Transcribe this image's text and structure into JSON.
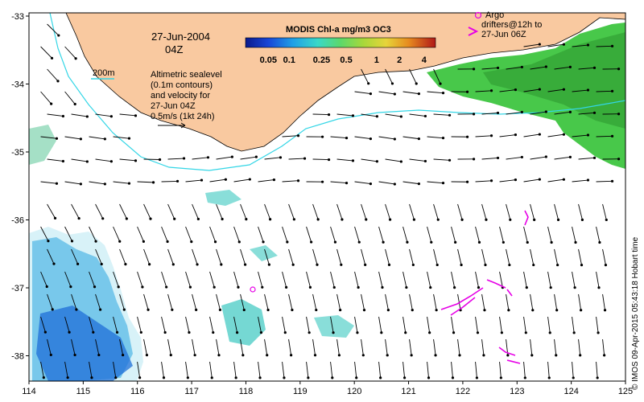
{
  "map": {
    "date": "27-Jun-2004",
    "time": "04Z",
    "depth_contour_label": "200m",
    "legend_lines": [
      "Altimetric sealevel",
      "(0.1m contours)",
      "and velocity for",
      "27-Jun 04Z",
      "0.5m/s (1kt 24h)"
    ],
    "argo_lines": [
      "Argo",
      "drifters@12h to",
      "27-Jun 06Z"
    ],
    "colorbar": {
      "title": "MODIS Chl-a mg/m3 OC3",
      "ticks": [
        "0.05",
        "0.1",
        "0.25",
        "0.5",
        "1",
        "2",
        "4"
      ]
    },
    "x_ticks": [
      "114",
      "115",
      "116",
      "117",
      "118",
      "119",
      "120",
      "121",
      "122",
      "123",
      "124",
      "125"
    ],
    "y_ticks": [
      "-33",
      "-34",
      "-35",
      "-36",
      "-37",
      "-38"
    ],
    "credit": "© IMOS 09-Apr-2015 05:43:18 Hobart time",
    "colors": {
      "land": "#F9C9A0",
      "shelf_contour": "#33D6E6",
      "argo": "#E600E6",
      "arrow": "#000000"
    }
  }
}
